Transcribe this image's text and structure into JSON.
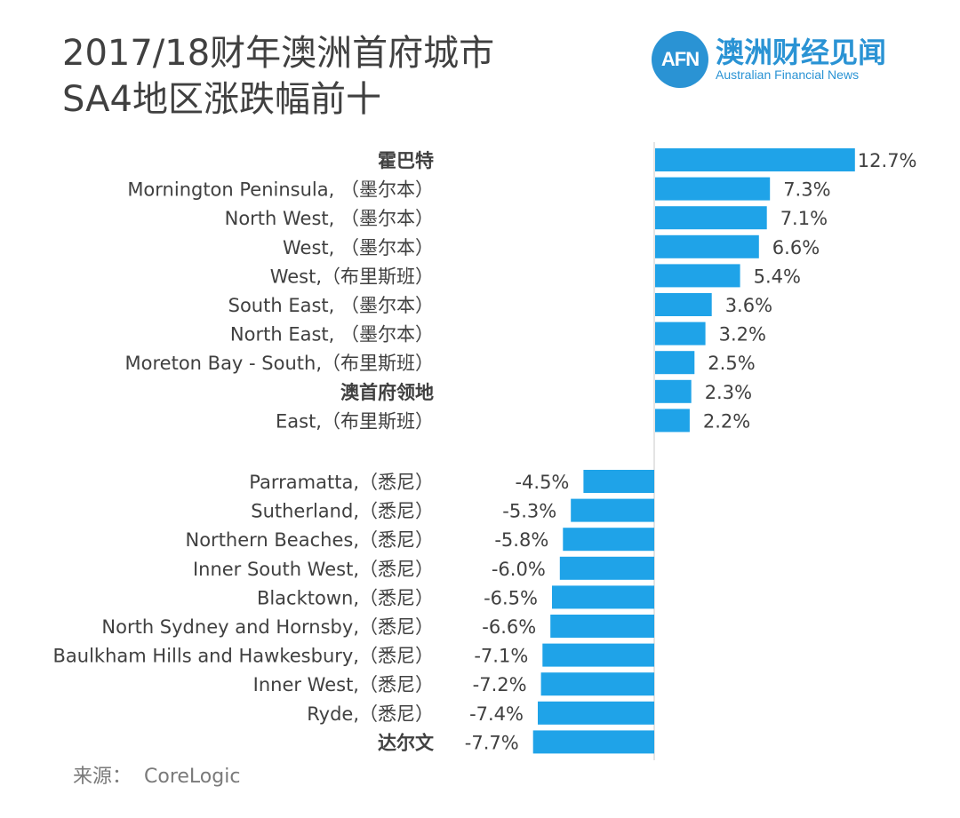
{
  "title": {
    "line1": "2017/18财年澳洲首府城市",
    "line2": "SA4地区涨跌幅前十"
  },
  "brand": {
    "logo_mark": "AFN",
    "name_cn": "澳洲财经见闻",
    "name_en": "Australian Financial News",
    "color": "#2a93d4"
  },
  "source": {
    "label": "来源：",
    "value": "CoreLogic"
  },
  "chart_data": {
    "type": "bar",
    "orientation": "horizontal",
    "bar_color": "#1fa3e8",
    "unit": "%",
    "groups": [
      {
        "name": "top",
        "items": [
          {
            "label": "霍巴特",
            "bold": true,
            "value": 12.7,
            "display": "12.7%"
          },
          {
            "label": "Mornington Peninsula,  （墨尔本）",
            "bold": false,
            "value": 7.3,
            "display": "7.3%"
          },
          {
            "label": "North West,  （墨尔本）",
            "bold": false,
            "value": 7.1,
            "display": "7.1%"
          },
          {
            "label": "West,  （墨尔本）",
            "bold": false,
            "value": 6.6,
            "display": "6.6%"
          },
          {
            "label": "West,（布里斯班）",
            "bold": false,
            "value": 5.4,
            "display": "5.4%"
          },
          {
            "label": "South East,  （墨尔本）",
            "bold": false,
            "value": 3.6,
            "display": "3.6%"
          },
          {
            "label": "North East,  （墨尔本）",
            "bold": false,
            "value": 3.2,
            "display": "3.2%"
          },
          {
            "label": "Moreton Bay - South,（布里斯班）",
            "bold": false,
            "value": 2.5,
            "display": "2.5%"
          },
          {
            "label": "澳首府领地",
            "bold": true,
            "value": 2.3,
            "display": "2.3%"
          },
          {
            "label": "East,（布里斯班）",
            "bold": false,
            "value": 2.2,
            "display": "2.2%"
          }
        ]
      },
      {
        "name": "bottom",
        "items": [
          {
            "label": "Parramatta,（悉尼）",
            "bold": false,
            "value": -4.5,
            "display": "-4.5%"
          },
          {
            "label": "Sutherland,（悉尼）",
            "bold": false,
            "value": -5.3,
            "display": "-5.3%"
          },
          {
            "label": "Northern Beaches,（悉尼）",
            "bold": false,
            "value": -5.8,
            "display": "-5.8%"
          },
          {
            "label": "Inner South West,（悉尼）",
            "bold": false,
            "value": -6.0,
            "display": "-6.0%"
          },
          {
            "label": "Blacktown,（悉尼）",
            "bold": false,
            "value": -6.5,
            "display": "-6.5%"
          },
          {
            "label": "North Sydney and Hornsby,（悉尼）",
            "bold": false,
            "value": -6.6,
            "display": "-6.6%"
          },
          {
            "label": "Baulkham Hills and Hawkesbury,（悉尼）",
            "bold": false,
            "value": -7.1,
            "display": "-7.1%"
          },
          {
            "label": "Inner West,（悉尼）",
            "bold": false,
            "value": -7.2,
            "display": "-7.2%"
          },
          {
            "label": "Ryde,（悉尼）",
            "bold": false,
            "value": -7.4,
            "display": "-7.4%"
          },
          {
            "label": "达尔文",
            "bold": true,
            "value": -7.7,
            "display": "-7.7%"
          }
        ]
      }
    ]
  }
}
